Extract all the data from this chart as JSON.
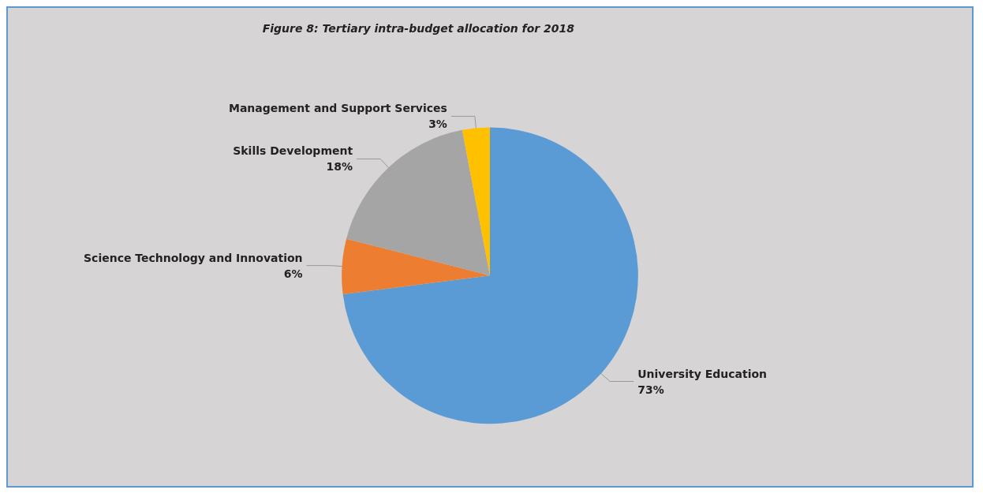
{
  "chart_data": {
    "type": "pie",
    "title": "Figure 8: Tertiary intra-budget allocation for 2018",
    "categories": [
      "University Education",
      "Science Technology and Innovation",
      "Skills Development",
      "Management and Support Services"
    ],
    "values": [
      73,
      6,
      18,
      3
    ],
    "colors": [
      "#5b9bd5",
      "#ed7d31",
      "#a5a5a5",
      "#ffc000"
    ],
    "value_labels": [
      "73%",
      "6%",
      "18%",
      "3%"
    ],
    "legend": false
  }
}
